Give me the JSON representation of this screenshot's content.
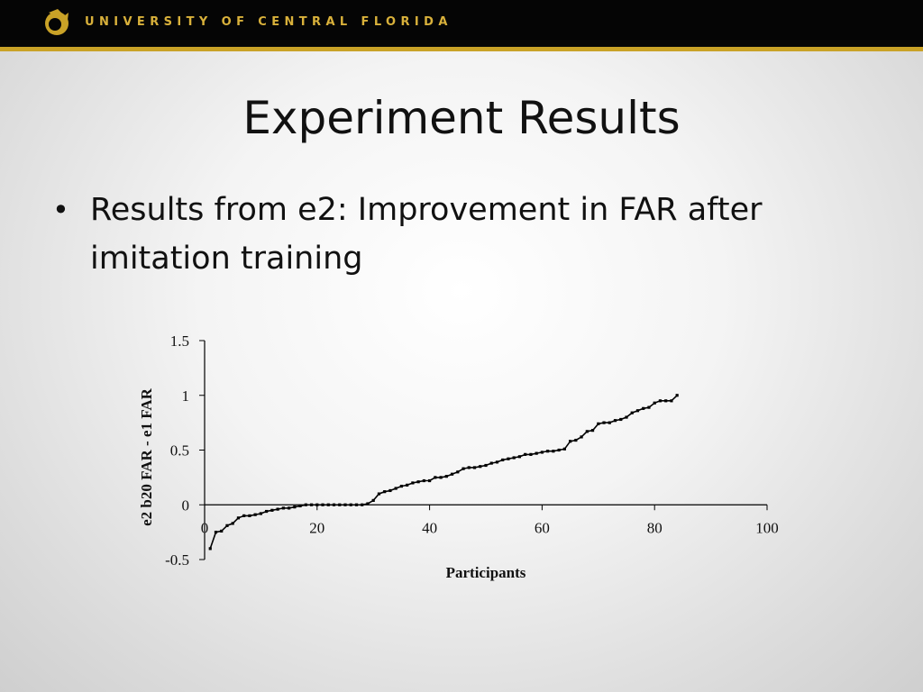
{
  "header": {
    "text": "UNIVERSITY OF CENTRAL FLORIDA",
    "logo_icon": "pegasus-icon",
    "accent_color": "#c9a227"
  },
  "slide": {
    "title": "Experiment Results",
    "bullet": "Results from e2: Improvement in FAR after imitation training"
  },
  "chart_data": {
    "type": "line",
    "title": "",
    "xlabel": "Participants",
    "ylabel": "e2 b20 FAR - e1 FAR",
    "xlim": [
      0,
      100
    ],
    "ylim": [
      -0.5,
      1.5
    ],
    "x_ticks": [
      "0",
      "20",
      "40",
      "60",
      "80",
      "100"
    ],
    "y_ticks": [
      "-0.5",
      "0",
      "0.5",
      "1",
      "1.5"
    ],
    "grid": false,
    "legend": "none",
    "series": [
      {
        "x": [
          1,
          2,
          3,
          4,
          5,
          6,
          7,
          8,
          9,
          10,
          11,
          12,
          13,
          14,
          15,
          16,
          17,
          18,
          19,
          20,
          21,
          22,
          23,
          24,
          25,
          26,
          27,
          28,
          29,
          30,
          31,
          32,
          33,
          34,
          35,
          36,
          37,
          38,
          39,
          40,
          41,
          42,
          43,
          44,
          45,
          46,
          47,
          48,
          49,
          50,
          51,
          52,
          53,
          54,
          55,
          56,
          57,
          58,
          59,
          60,
          61,
          62,
          63,
          64,
          65,
          66,
          67,
          68,
          69,
          70,
          71,
          72,
          73,
          74,
          75,
          76,
          77,
          78,
          79,
          80,
          81,
          82,
          83,
          84
        ],
        "y": [
          -0.4,
          -0.25,
          -0.24,
          -0.19,
          -0.17,
          -0.12,
          -0.1,
          -0.1,
          -0.09,
          -0.08,
          -0.06,
          -0.05,
          -0.04,
          -0.03,
          -0.03,
          -0.02,
          -0.01,
          0,
          0,
          0,
          0,
          0,
          0,
          0,
          0,
          0,
          0,
          0,
          0.01,
          0.04,
          0.1,
          0.12,
          0.13,
          0.15,
          0.17,
          0.18,
          0.2,
          0.21,
          0.22,
          0.22,
          0.25,
          0.25,
          0.26,
          0.28,
          0.3,
          0.33,
          0.34,
          0.34,
          0.35,
          0.36,
          0.38,
          0.39,
          0.41,
          0.42,
          0.43,
          0.44,
          0.46,
          0.46,
          0.47,
          0.48,
          0.49,
          0.49,
          0.5,
          0.51,
          0.58,
          0.59,
          0.62,
          0.67,
          0.68,
          0.74,
          0.75,
          0.75,
          0.77,
          0.78,
          0.8,
          0.84,
          0.86,
          0.88,
          0.89,
          0.93,
          0.95,
          0.95,
          0.95,
          1.0
        ]
      }
    ],
    "line_color": "#000000"
  }
}
